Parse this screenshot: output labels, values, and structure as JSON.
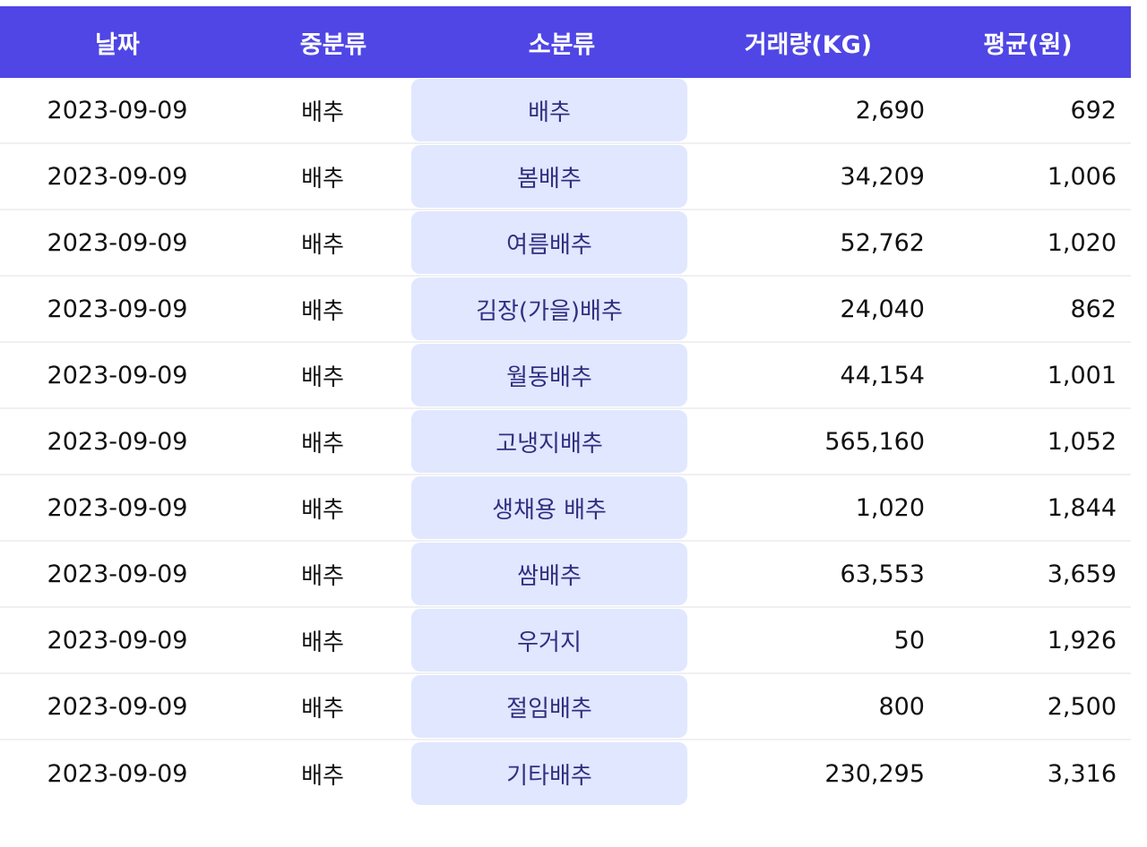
{
  "table": {
    "headers": {
      "date": "날짜",
      "mid_category": "중분류",
      "sub_category": "소분류",
      "volume": "거래량(KG)",
      "average": "평균(원)"
    },
    "rows": [
      {
        "date": "2023-09-09",
        "mid": "배추",
        "sub": "배추",
        "volume": "2,690",
        "avg": "692"
      },
      {
        "date": "2023-09-09",
        "mid": "배추",
        "sub": "봄배추",
        "volume": "34,209",
        "avg": "1,006"
      },
      {
        "date": "2023-09-09",
        "mid": "배추",
        "sub": "여름배추",
        "volume": "52,762",
        "avg": "1,020"
      },
      {
        "date": "2023-09-09",
        "mid": "배추",
        "sub": "김장(가을)배추",
        "volume": "24,040",
        "avg": "862"
      },
      {
        "date": "2023-09-09",
        "mid": "배추",
        "sub": "월동배추",
        "volume": "44,154",
        "avg": "1,001"
      },
      {
        "date": "2023-09-09",
        "mid": "배추",
        "sub": "고냉지배추",
        "volume": "565,160",
        "avg": "1,052"
      },
      {
        "date": "2023-09-09",
        "mid": "배추",
        "sub": "생채용 배추",
        "volume": "1,020",
        "avg": "1,844"
      },
      {
        "date": "2023-09-09",
        "mid": "배추",
        "sub": "쌈배추",
        "volume": "63,553",
        "avg": "3,659"
      },
      {
        "date": "2023-09-09",
        "mid": "배추",
        "sub": "우거지",
        "volume": "50",
        "avg": "1,926"
      },
      {
        "date": "2023-09-09",
        "mid": "배추",
        "sub": "절임배추",
        "volume": "800",
        "avg": "2,500"
      },
      {
        "date": "2023-09-09",
        "mid": "배추",
        "sub": "기타배추",
        "volume": "230,295",
        "avg": "3,316"
      }
    ]
  },
  "colors": {
    "header_bg": "#4f46e5",
    "header_text": "#ffffff",
    "sub_cell_bg": "#e0e7ff",
    "sub_cell_text": "#312e81"
  }
}
